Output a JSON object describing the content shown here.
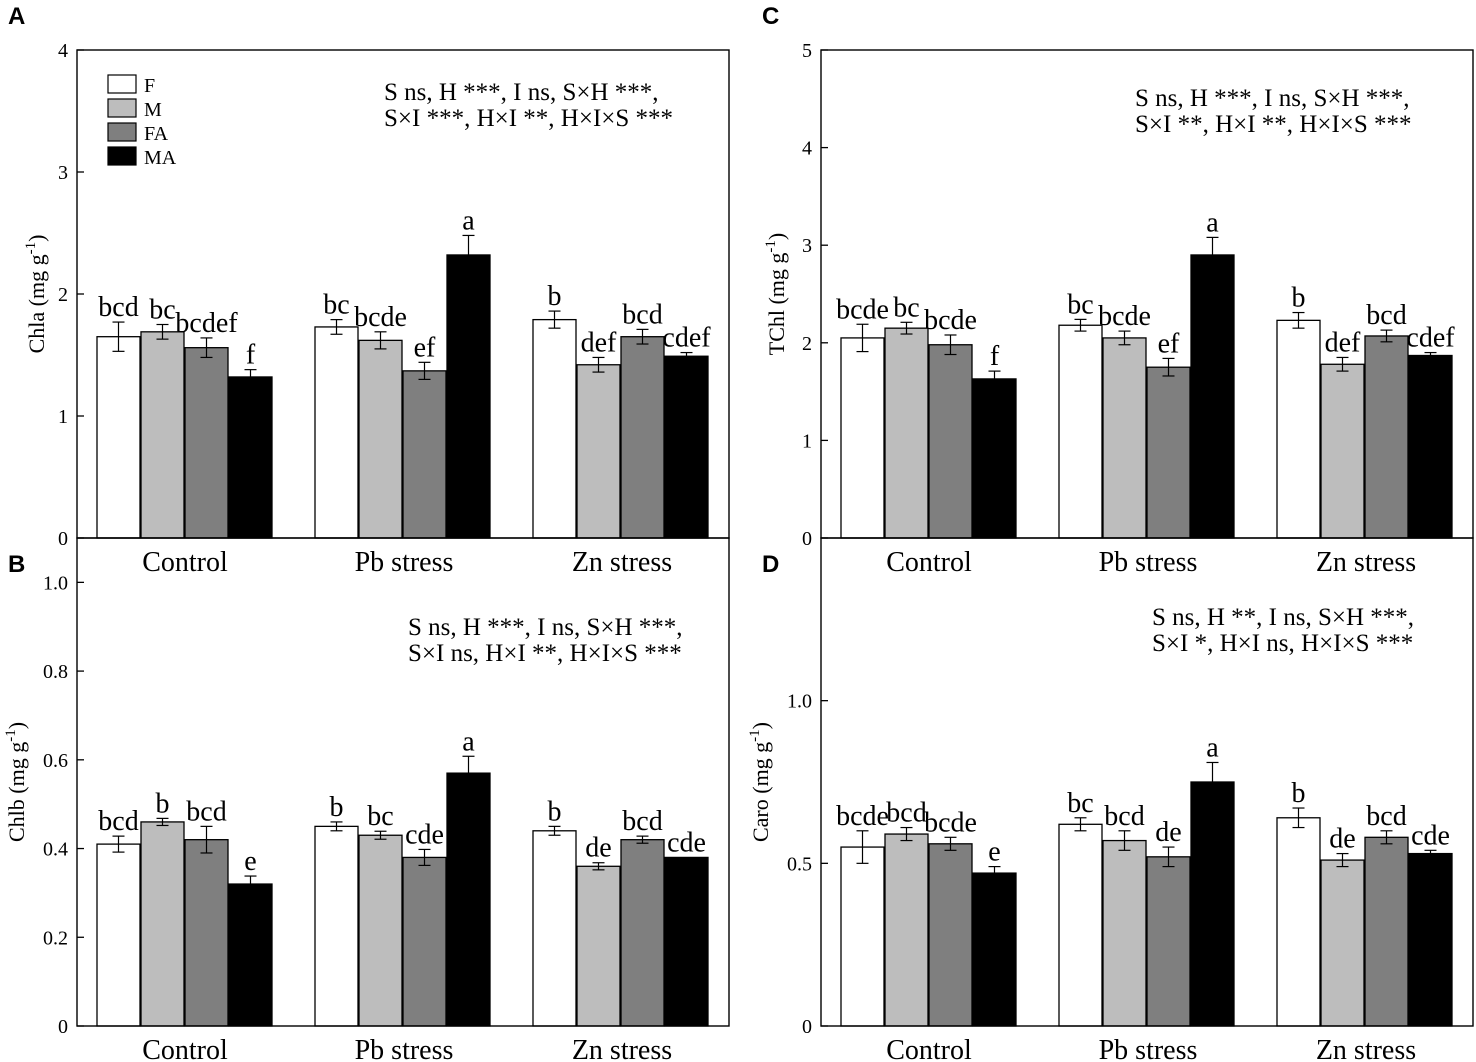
{
  "chart_data": [
    {
      "type": "bar",
      "panel": "A",
      "title": "",
      "xlabel": "",
      "ylabel": "Chla (mg g",
      "ylabel_sup": "-1",
      "ylabel_close": ")",
      "categories": [
        "Control",
        "Pb stress",
        "Zn stress"
      ],
      "ylim": [
        0,
        4
      ],
      "yticks": [
        "0",
        "1",
        "2",
        "3",
        "4"
      ],
      "series": [
        {
          "name": "F",
          "values": [
            1.65,
            1.73,
            1.79
          ],
          "errors": [
            0.12,
            0.06,
            0.07
          ],
          "letters": [
            "bcd",
            "bc",
            "b"
          ]
        },
        {
          "name": "M",
          "values": [
            1.69,
            1.62,
            1.42
          ],
          "errors": [
            0.06,
            0.07,
            0.06
          ],
          "letters": [
            "bc",
            "bcde",
            "def"
          ]
        },
        {
          "name": "FA",
          "values": [
            1.56,
            1.37,
            1.65
          ],
          "errors": [
            0.08,
            0.07,
            0.06
          ],
          "letters": [
            "bcdef",
            "ef",
            "bcd"
          ]
        },
        {
          "name": "MA",
          "values": [
            1.32,
            2.32,
            1.49
          ],
          "errors": [
            0.06,
            0.16,
            0.03
          ],
          "letters": [
            "f",
            "a",
            "cdef"
          ]
        }
      ],
      "stats": [
        "S ns, H ***, I ns, S×H ***,",
        "S×I ***, H×I **, H×I×S ***"
      ],
      "legend": true
    },
    {
      "type": "bar",
      "panel": "B",
      "title": "",
      "xlabel": "",
      "ylabel": "Chlb (mg g",
      "ylabel_sup": "-1",
      "ylabel_close": ")",
      "categories": [
        "Control",
        "Pb stress",
        "Zn stress"
      ],
      "ylim": [
        0,
        1.1
      ],
      "yticks": [
        "0",
        "0.2",
        "0.4",
        "0.6",
        "0.8",
        "1.0"
      ],
      "series": [
        {
          "name": "F",
          "values": [
            0.41,
            0.45,
            0.44
          ],
          "errors": [
            0.018,
            0.01,
            0.01
          ],
          "letters": [
            "bcd",
            "b",
            "b"
          ]
        },
        {
          "name": "M",
          "values": [
            0.46,
            0.43,
            0.36
          ],
          "errors": [
            0.008,
            0.009,
            0.008
          ],
          "letters": [
            "b",
            "bc",
            "de"
          ]
        },
        {
          "name": "FA",
          "values": [
            0.42,
            0.38,
            0.42
          ],
          "errors": [
            0.03,
            0.018,
            0.008
          ],
          "letters": [
            "bcd",
            "cde",
            "bcd"
          ]
        },
        {
          "name": "MA",
          "values": [
            0.32,
            0.57,
            0.38
          ],
          "errors": [
            0.018,
            0.038,
            0
          ],
          "letters": [
            "e",
            "a",
            "cde"
          ]
        }
      ],
      "stats": [
        "S ns, H ***, I ns, S×H ***,",
        "S×I ns, H×I **, H×I×S ***"
      ],
      "legend": false
    },
    {
      "type": "bar",
      "panel": "C",
      "title": "",
      "xlabel": "",
      "ylabel": "TChl (mg g",
      "ylabel_sup": "-1",
      "ylabel_close": ")",
      "categories": [
        "Control",
        "Pb stress",
        "Zn stress"
      ],
      "ylim": [
        0,
        5
      ],
      "yticks": [
        "0",
        "1",
        "2",
        "3",
        "4",
        "5"
      ],
      "series": [
        {
          "name": "F",
          "values": [
            2.05,
            2.18,
            2.23
          ],
          "errors": [
            0.14,
            0.06,
            0.08
          ],
          "letters": [
            "bcde",
            "bc",
            "b"
          ]
        },
        {
          "name": "M",
          "values": [
            2.15,
            2.05,
            1.78
          ],
          "errors": [
            0.06,
            0.07,
            0.07
          ],
          "letters": [
            "bc",
            "bcde",
            "def"
          ]
        },
        {
          "name": "FA",
          "values": [
            1.98,
            1.75,
            2.07
          ],
          "errors": [
            0.1,
            0.09,
            0.06
          ],
          "letters": [
            "bcde",
            "ef",
            "bcd"
          ]
        },
        {
          "name": "MA",
          "values": [
            1.63,
            2.9,
            1.87
          ],
          "errors": [
            0.08,
            0.18,
            0.03
          ],
          "letters": [
            "f",
            "a",
            "cdef"
          ]
        }
      ],
      "stats": [
        "S ns, H ***, I ns, S×H ***,",
        "S×I **, H×I **, H×I×S ***"
      ],
      "legend": false
    },
    {
      "type": "bar",
      "panel": "D",
      "title": "",
      "xlabel": "",
      "ylabel": "Caro (mg g",
      "ylabel_sup": "-1",
      "ylabel_close": ")",
      "categories": [
        "Control",
        "Pb stress",
        "Zn stress"
      ],
      "ylim": [
        0,
        1.5
      ],
      "yticks": [
        "0",
        "0.5",
        "1.0"
      ],
      "ytick_values": [
        0,
        0.5,
        1.0
      ],
      "series": [
        {
          "name": "F",
          "values": [
            0.55,
            0.62,
            0.64
          ],
          "errors": [
            0.05,
            0.02,
            0.03
          ],
          "letters": [
            "bcde",
            "bc",
            "b"
          ]
        },
        {
          "name": "M",
          "values": [
            0.59,
            0.57,
            0.51
          ],
          "errors": [
            0.02,
            0.03,
            0.02
          ],
          "letters": [
            "bcd",
            "bcd",
            "de"
          ]
        },
        {
          "name": "FA",
          "values": [
            0.56,
            0.52,
            0.58
          ],
          "errors": [
            0.02,
            0.03,
            0.02
          ],
          "letters": [
            "bcde",
            "de",
            "bcd"
          ]
        },
        {
          "name": "MA",
          "values": [
            0.47,
            0.75,
            0.53
          ],
          "errors": [
            0.02,
            0.06,
            0.01
          ],
          "letters": [
            "e",
            "a",
            "cde"
          ]
        }
      ],
      "stats": [
        "S ns, H **, I ns, S×H ***,",
        "S×I *, H×I ns, H×I×S ***"
      ],
      "legend": false
    }
  ],
  "legend": {
    "entries": [
      "F",
      "M",
      "FA",
      "MA"
    ]
  },
  "colors": {
    "F": "#ffffff",
    "M": "#bdbdbd",
    "FA": "#7f7f7f",
    "MA": "#000000"
  }
}
